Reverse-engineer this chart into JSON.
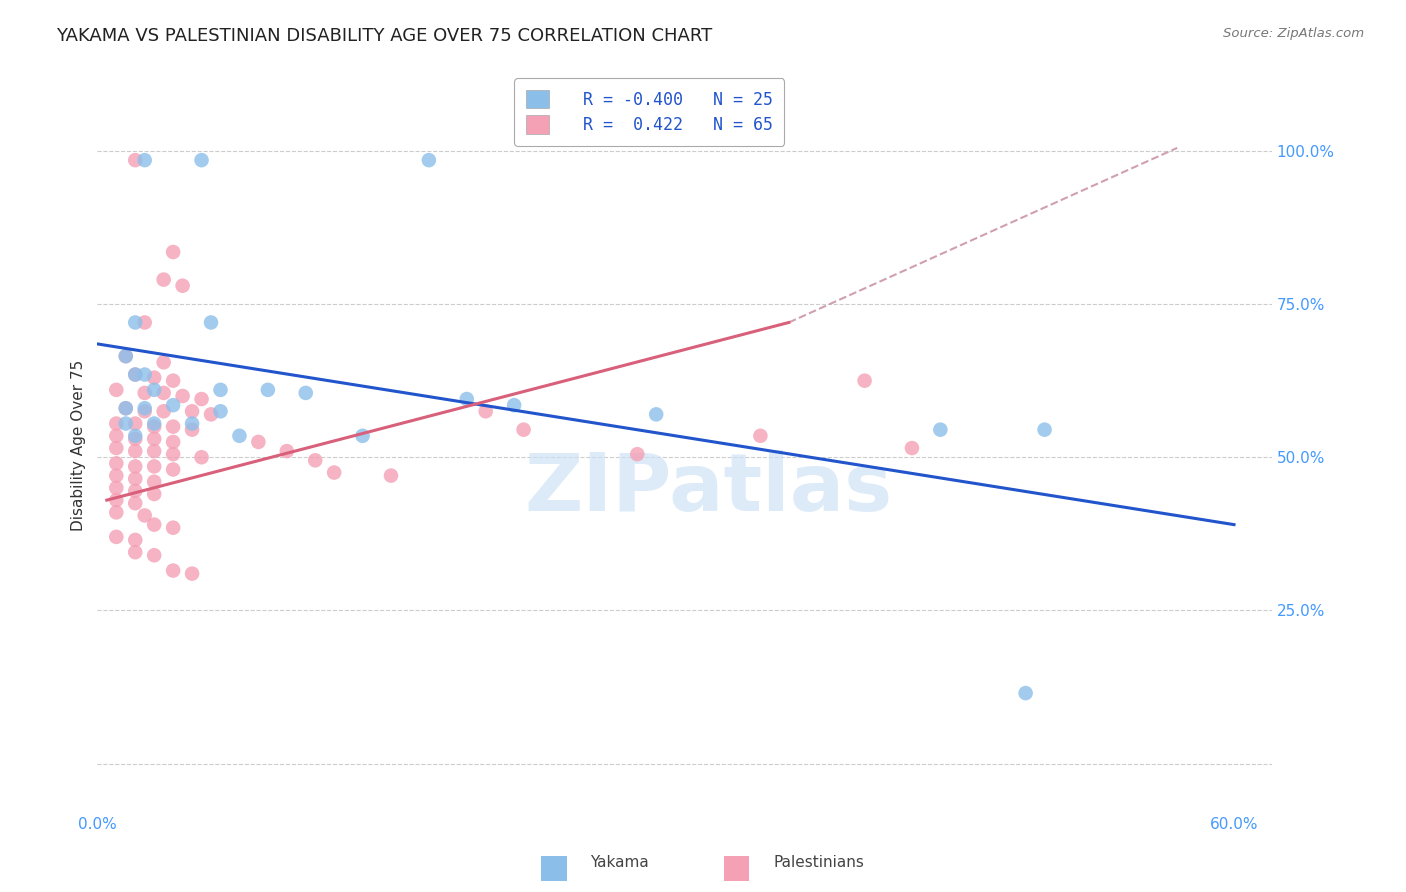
{
  "title": "YAKAMA VS PALESTINIAN DISABILITY AGE OVER 75 CORRELATION CHART",
  "source": "Source: ZipAtlas.com",
  "ylabel": "Disability Age Over 75",
  "xlim": [
    0.0,
    0.62
  ],
  "ylim": [
    -0.08,
    1.12
  ],
  "x_ticks": [
    0.0,
    0.12,
    0.24,
    0.36,
    0.48,
    0.6
  ],
  "x_tick_labels": [
    "0.0%",
    "",
    "",
    "",
    "",
    "60.0%"
  ],
  "y_ticks": [
    0.0,
    0.25,
    0.5,
    0.75,
    1.0
  ],
  "y_tick_labels": [
    "",
    "25.0%",
    "50.0%",
    "75.0%",
    "100.0%"
  ],
  "watermark": "ZIPatlas",
  "yakama_color": "#8bbfea",
  "palestinian_color": "#f4a0b5",
  "yakama_trend_color": "#2255cc",
  "palestinian_trend_color": "#d9607a",
  "dashed_color": "#d0a0b0",
  "background_color": "#ffffff",
  "grid_color": "#cccccc",
  "title_fontsize": 13,
  "axis_label_fontsize": 11,
  "tick_fontsize": 11,
  "tick_color": "#4499ff",
  "yakama_points": [
    [
      0.025,
      0.985
    ],
    [
      0.055,
      0.985
    ],
    [
      0.175,
      0.985
    ],
    [
      0.02,
      0.72
    ],
    [
      0.06,
      0.72
    ],
    [
      0.015,
      0.665
    ],
    [
      0.02,
      0.635
    ],
    [
      0.025,
      0.635
    ],
    [
      0.03,
      0.61
    ],
    [
      0.065,
      0.61
    ],
    [
      0.09,
      0.61
    ],
    [
      0.11,
      0.605
    ],
    [
      0.015,
      0.58
    ],
    [
      0.025,
      0.58
    ],
    [
      0.04,
      0.585
    ],
    [
      0.065,
      0.575
    ],
    [
      0.015,
      0.555
    ],
    [
      0.03,
      0.555
    ],
    [
      0.05,
      0.555
    ],
    [
      0.02,
      0.535
    ],
    [
      0.075,
      0.535
    ],
    [
      0.14,
      0.535
    ],
    [
      0.195,
      0.595
    ],
    [
      0.22,
      0.585
    ],
    [
      0.295,
      0.57
    ],
    [
      0.445,
      0.545
    ],
    [
      0.5,
      0.545
    ],
    [
      0.49,
      0.115
    ]
  ],
  "palestinian_points": [
    [
      0.02,
      0.985
    ],
    [
      0.04,
      0.835
    ],
    [
      0.035,
      0.79
    ],
    [
      0.045,
      0.78
    ],
    [
      0.025,
      0.72
    ],
    [
      0.015,
      0.665
    ],
    [
      0.035,
      0.655
    ],
    [
      0.02,
      0.635
    ],
    [
      0.03,
      0.63
    ],
    [
      0.04,
      0.625
    ],
    [
      0.01,
      0.61
    ],
    [
      0.025,
      0.605
    ],
    [
      0.035,
      0.605
    ],
    [
      0.045,
      0.6
    ],
    [
      0.055,
      0.595
    ],
    [
      0.015,
      0.58
    ],
    [
      0.025,
      0.575
    ],
    [
      0.035,
      0.575
    ],
    [
      0.05,
      0.575
    ],
    [
      0.06,
      0.57
    ],
    [
      0.01,
      0.555
    ],
    [
      0.02,
      0.555
    ],
    [
      0.03,
      0.55
    ],
    [
      0.04,
      0.55
    ],
    [
      0.05,
      0.545
    ],
    [
      0.01,
      0.535
    ],
    [
      0.02,
      0.53
    ],
    [
      0.03,
      0.53
    ],
    [
      0.04,
      0.525
    ],
    [
      0.01,
      0.515
    ],
    [
      0.02,
      0.51
    ],
    [
      0.03,
      0.51
    ],
    [
      0.04,
      0.505
    ],
    [
      0.055,
      0.5
    ],
    [
      0.01,
      0.49
    ],
    [
      0.02,
      0.485
    ],
    [
      0.03,
      0.485
    ],
    [
      0.04,
      0.48
    ],
    [
      0.01,
      0.47
    ],
    [
      0.02,
      0.465
    ],
    [
      0.03,
      0.46
    ],
    [
      0.01,
      0.45
    ],
    [
      0.02,
      0.445
    ],
    [
      0.03,
      0.44
    ],
    [
      0.01,
      0.43
    ],
    [
      0.02,
      0.425
    ],
    [
      0.01,
      0.41
    ],
    [
      0.025,
      0.405
    ],
    [
      0.03,
      0.39
    ],
    [
      0.04,
      0.385
    ],
    [
      0.01,
      0.37
    ],
    [
      0.02,
      0.365
    ],
    [
      0.02,
      0.345
    ],
    [
      0.03,
      0.34
    ],
    [
      0.04,
      0.315
    ],
    [
      0.05,
      0.31
    ],
    [
      0.085,
      0.525
    ],
    [
      0.1,
      0.51
    ],
    [
      0.115,
      0.495
    ],
    [
      0.125,
      0.475
    ],
    [
      0.155,
      0.47
    ],
    [
      0.205,
      0.575
    ],
    [
      0.225,
      0.545
    ],
    [
      0.285,
      0.505
    ],
    [
      0.35,
      0.535
    ],
    [
      0.405,
      0.625
    ],
    [
      0.43,
      0.515
    ]
  ],
  "blue_line_x": [
    0.0,
    0.6
  ],
  "blue_line_y": [
    0.685,
    0.39
  ],
  "pink_line_x": [
    0.005,
    0.365
  ],
  "pink_line_y": [
    0.43,
    0.72
  ],
  "dashed_line_x": [
    0.365,
    0.57
  ],
  "dashed_line_y": [
    0.72,
    1.005
  ]
}
